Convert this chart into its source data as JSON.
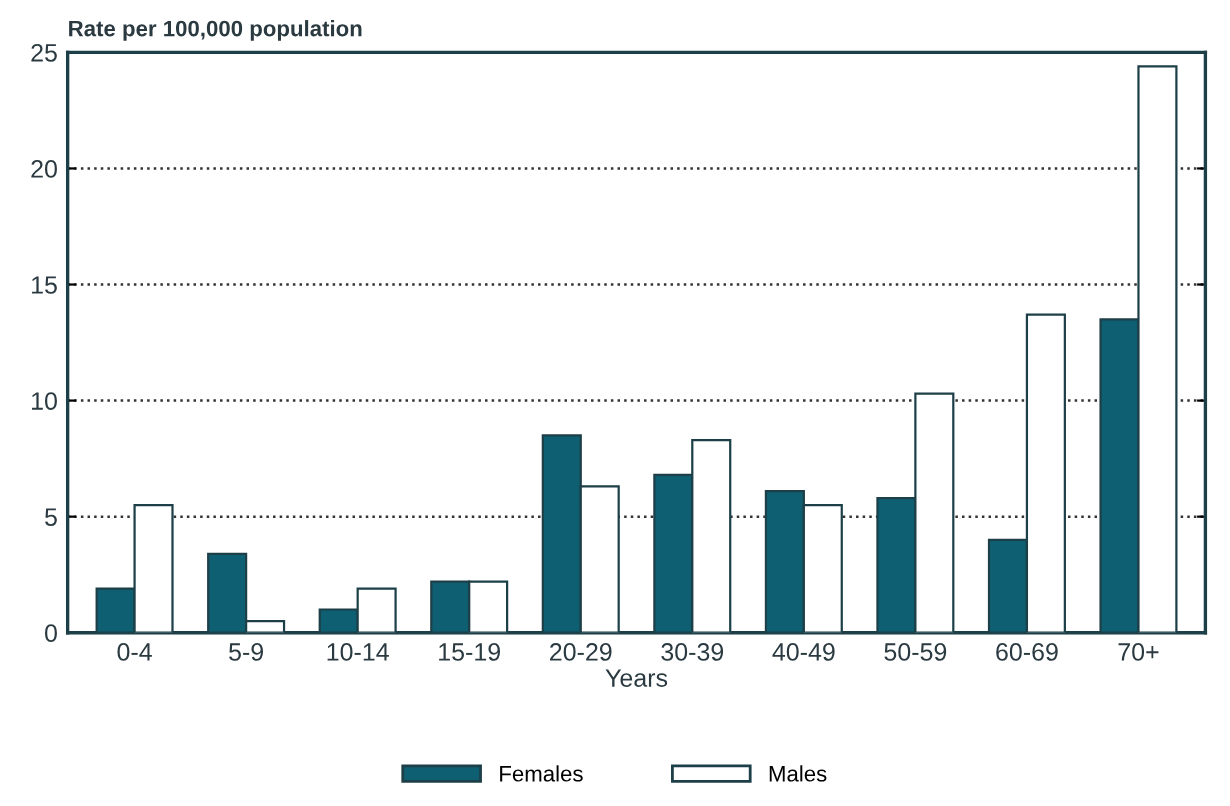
{
  "chart_data": {
    "type": "bar",
    "ylabel": "Rate per 100,000 population",
    "xlabel": "Years",
    "categories": [
      "0-4",
      "5-9",
      "10-14",
      "15-19",
      "20-29",
      "30-39",
      "40-49",
      "50-59",
      "60-69",
      "70+"
    ],
    "series": [
      {
        "name": "Females",
        "color": "#0f5f73",
        "values": [
          1.9,
          3.4,
          1.0,
          2.2,
          8.5,
          6.8,
          6.1,
          5.8,
          4.0,
          13.5
        ]
      },
      {
        "name": "Males",
        "color": "#ffffff",
        "values": [
          5.5,
          0.5,
          1.9,
          2.2,
          6.3,
          8.3,
          5.5,
          10.3,
          13.7,
          24.4
        ]
      }
    ],
    "ylim": [
      0,
      25
    ],
    "yticks": [
      0,
      5,
      10,
      15,
      20,
      25
    ],
    "grid": "y",
    "legend": "bottom"
  }
}
